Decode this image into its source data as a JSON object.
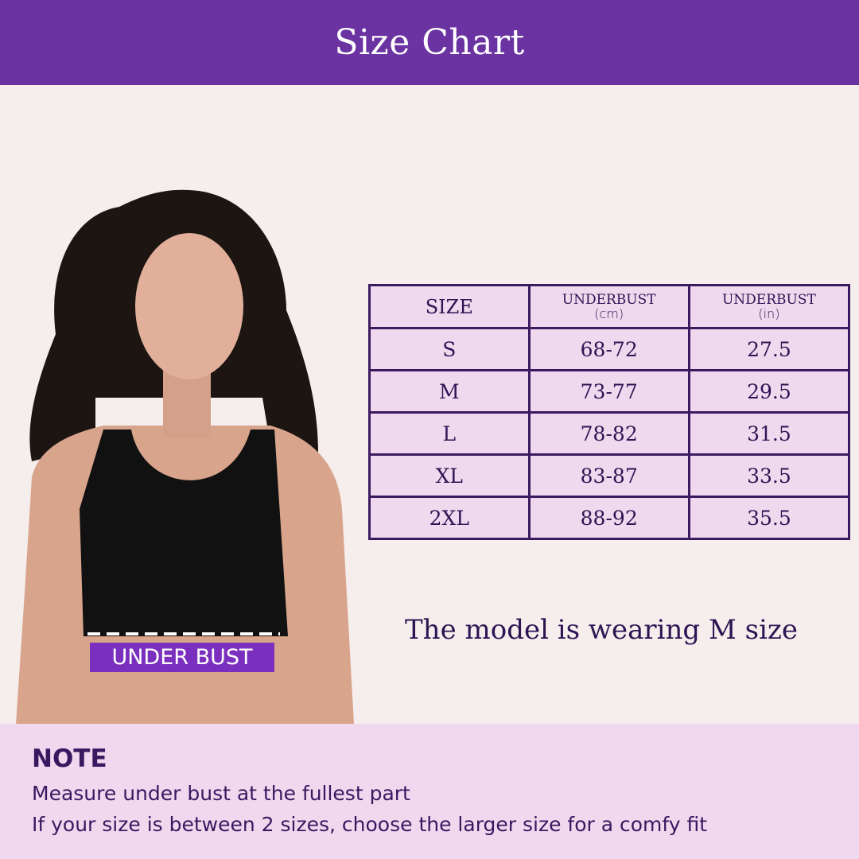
{
  "header": {
    "title": "Size Chart"
  },
  "table": {
    "headers": [
      {
        "title": "SIZE",
        "unit": ""
      },
      {
        "title": "UNDERBUST",
        "unit": "(cm)"
      },
      {
        "title": "UNDERBUST",
        "unit": "(in)"
      }
    ],
    "rows": [
      [
        "S",
        "68-72",
        "27.5"
      ],
      [
        "M",
        "73-77",
        "29.5"
      ],
      [
        "L",
        "78-82",
        "31.5"
      ],
      [
        "XL",
        "83-87",
        "33.5"
      ],
      [
        "2XL",
        "88-92",
        "35.5"
      ]
    ]
  },
  "model_note": "The model is wearing M size",
  "figure": {
    "label": "UNDER BUST"
  },
  "note": {
    "title": "NOTE",
    "lines": [
      "Measure under bust at the fullest part",
      "If your size is between 2 sizes, choose the larger size for a comfy fit"
    ]
  },
  "colors": {
    "brand": "#6a33a1",
    "table_border": "#3b1a60",
    "cell_bg": "#efd9ee",
    "text": "#2e1453"
  }
}
